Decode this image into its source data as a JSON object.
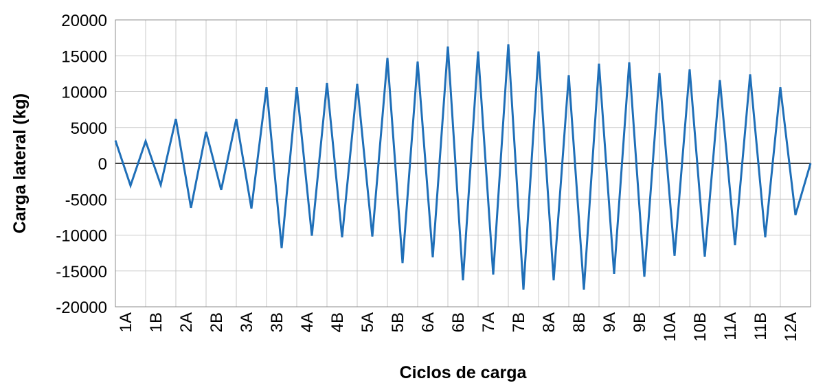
{
  "chart_data": {
    "type": "line",
    "title": "",
    "xlabel": "Ciclos de carga",
    "ylabel": "Carga lateral (kg)",
    "ylim": [
      -20000,
      20000
    ],
    "yticks": [
      20000,
      15000,
      10000,
      5000,
      0,
      -5000,
      -10000,
      -15000,
      -20000
    ],
    "x_tick_labels": [
      "1A",
      "1B",
      "2A",
      "2B",
      "3A",
      "3B",
      "4A",
      "4B",
      "5A",
      "5B",
      "6A",
      "6B",
      "7A",
      "7B",
      "8A",
      "8B",
      "9A",
      "9B",
      "10A",
      "10B",
      "11A",
      "11B",
      "12A"
    ],
    "grid": true,
    "legend": "none",
    "series": [
      {
        "color": "#1f6fb8",
        "values": [
          3200,
          -3100,
          3100,
          -3000,
          6200,
          -6200,
          4400,
          -3700,
          6200,
          -6300,
          10600,
          -11800,
          10600,
          -10100,
          11200,
          -10300,
          11100,
          -10200,
          14700,
          -13900,
          14200,
          -13100,
          16300,
          -16300,
          15600,
          -15500,
          16600,
          -17600,
          15600,
          -16300,
          12300,
          -17600,
          13900,
          -15400,
          14100,
          -15800,
          12600,
          -12900,
          13100,
          -13000,
          11600,
          -11400,
          12400,
          -10300,
          10600,
          -7200,
          0
        ]
      }
    ]
  }
}
